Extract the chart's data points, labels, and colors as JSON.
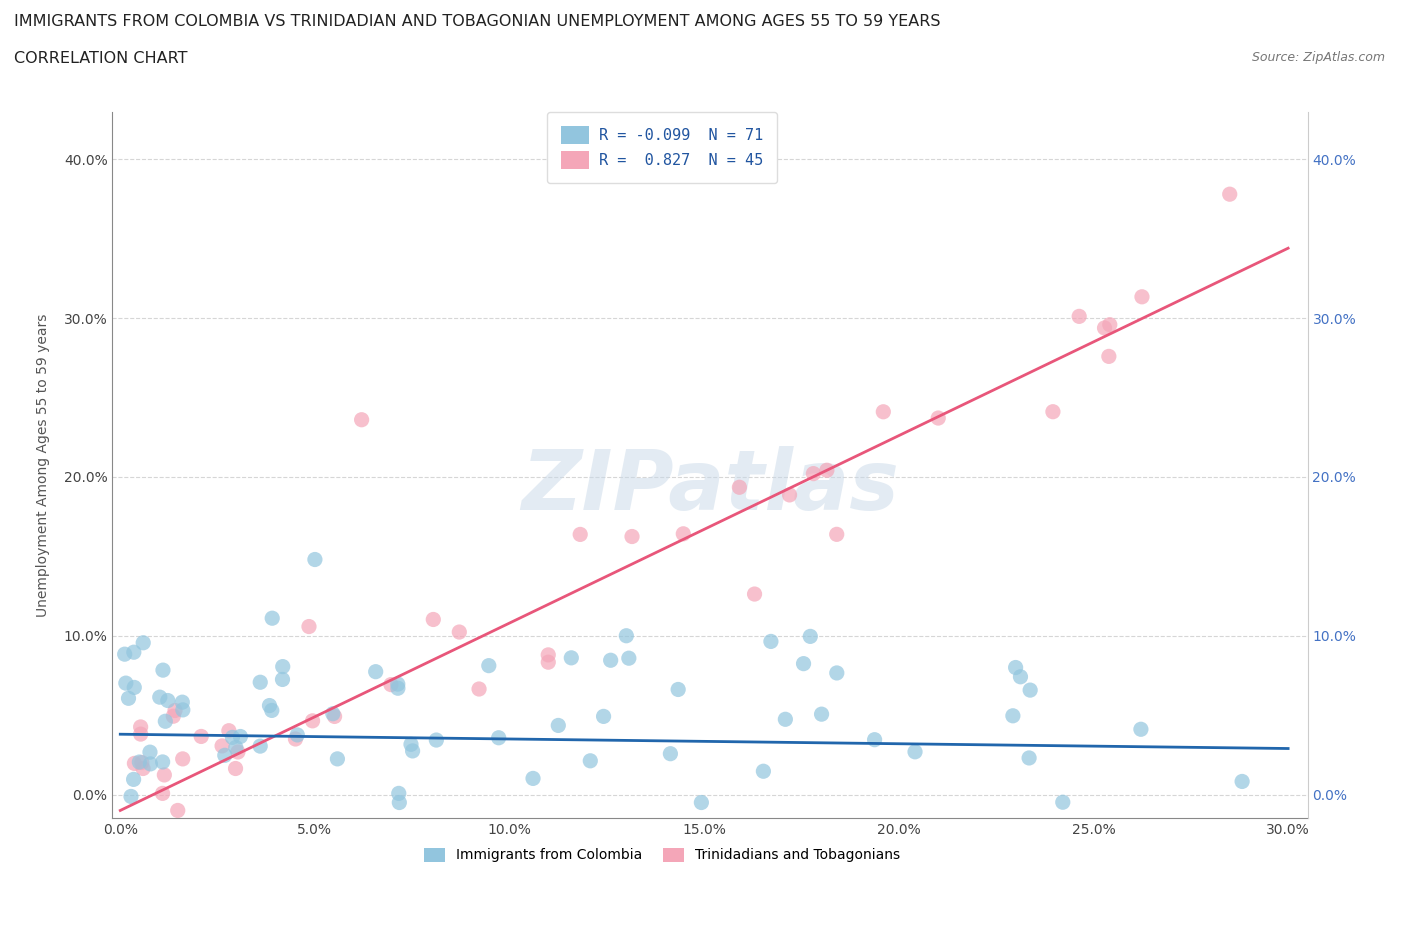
{
  "title": "IMMIGRANTS FROM COLOMBIA VS TRINIDADIAN AND TOBAGONIAN UNEMPLOYMENT AMONG AGES 55 TO 59 YEARS",
  "subtitle": "CORRELATION CHART",
  "source": "Source: ZipAtlas.com",
  "ylabel": "Unemployment Among Ages 55 to 59 years",
  "xlim": [
    -0.002,
    0.305
  ],
  "ylim": [
    -0.015,
    0.43
  ],
  "xticks": [
    0.0,
    0.05,
    0.1,
    0.15,
    0.2,
    0.25,
    0.3
  ],
  "yticks": [
    0.0,
    0.1,
    0.2,
    0.3,
    0.4
  ],
  "colombia_color": "#92C5DE",
  "trinidad_color": "#F4A6B8",
  "colombia_line_color": "#2166AC",
  "trinidad_line_color": "#E8567A",
  "R_colombia": -0.099,
  "N_colombia": 71,
  "R_trinidad": 0.827,
  "N_trinidad": 45,
  "legend_label_colombia": "Immigrants from Colombia",
  "legend_label_trinidad": "Trinidadians and Tobagonians",
  "watermark": "ZIPatlas",
  "title_fontsize": 11.5,
  "subtitle_fontsize": 11.5,
  "source_fontsize": 9,
  "axis_label_fontsize": 10,
  "tick_fontsize": 10,
  "legend_fontsize": 11,
  "colombia_line_intercept": 0.038,
  "colombia_line_slope": -0.03,
  "trinidad_line_intercept": -0.01,
  "trinidad_line_slope": 1.18
}
